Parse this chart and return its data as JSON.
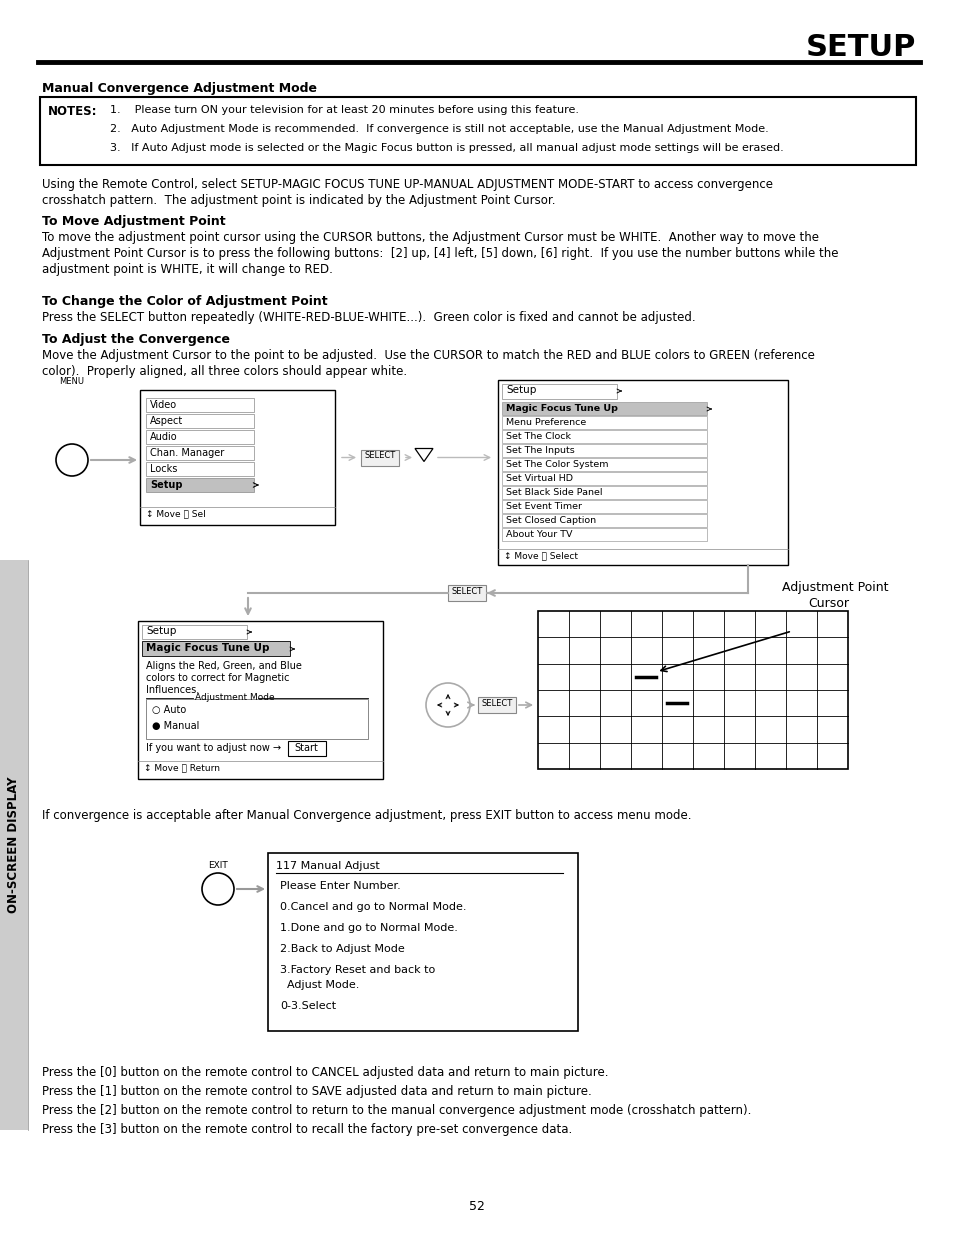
{
  "title": "SETUP",
  "section_title": "Manual Convergence Adjustment Mode",
  "notes_label": "NOTES:",
  "notes_lines": [
    "1.    Please turn ON your television for at least 20 minutes before using this feature.",
    "2.   Auto Adjustment Mode is recommended.  If convergence is still not acceptable, use the Manual Adjustment Mode.",
    "3.   If Auto Adjust mode is selected or the Magic Focus button is pressed, all manual adjust mode settings will be erased."
  ],
  "para1_line1": "Using the Remote Control, select SETUP-MAGIC FOCUS TUNE UP-MANUAL ADJUSTMENT MODE-START to access convergence",
  "para1_line2": "crosshatch pattern.  The adjustment point is indicated by the Adjustment Point Cursor.",
  "head2": "To Move Adjustment Point",
  "para2_line1": "To move the adjustment point cursor using the CURSOR buttons, the Adjustment Cursor must be WHITE.  Another way to move the",
  "para2_line2": "Adjustment Point Cursor is to press the following buttons:  [2] up, [4] left, [5] down, [6] right.  If you use the number buttons while the",
  "para2_line3": "adjustment point is WHITE, it will change to RED.",
  "head3": "To Change the Color of Adjustment Point",
  "para3": "Press the SELECT button repeatedly (WHITE-RED-BLUE-WHITE...).  Green color is fixed and cannot be adjusted.",
  "head4": "To Adjust the Convergence",
  "para4_line1": "Move the Adjustment Cursor to the point to be adjusted.  Use the CURSOR to match the RED and BLUE colors to GREEN (reference",
  "para4_line2": "color).  Properly aligned, all three colors should appear white.",
  "menu1_items": [
    "Video",
    "Aspect",
    "Audio",
    "Chan. Manager",
    "Locks",
    "Setup"
  ],
  "menu1_footer": "↕ Move Ⓜ Sel",
  "menu2_title": "Setup",
  "menu2_items": [
    "Magic Focus Tune Up",
    "Menu Preference",
    "Set The Clock",
    "Set The Inputs",
    "Set The Color System",
    "Set Virtual HD",
    "Set Black Side Panel",
    "Set Event Timer",
    "Set Closed Caption",
    "About Your TV"
  ],
  "menu2_footer": "↕ Move Ⓜ Select",
  "menu3_title": "Setup",
  "menu3_subtitle": "Magic Focus Tune Up",
  "menu3_desc_lines": [
    "Aligns the Red, Green, and Blue",
    "colors to correct for Magnetic",
    "Influences."
  ],
  "menu3_adj_label": "Adjustment Mode",
  "menu3_opts": [
    "○ Auto",
    "● Manual"
  ],
  "menu3_start": "If you want to adjust now →",
  "menu3_start_btn": "Start",
  "menu3_footer": "↕ Move Ⓜ Return",
  "adj_cursor_label1": "Adjustment Point",
  "adj_cursor_label2": "Cursor",
  "exit_text": "If convergence is acceptable after Manual Convergence adjustment, press EXIT button to access menu mode.",
  "box117_title": "117 Manual Adjust",
  "box117_lines": [
    "Please Enter Number.",
    "0.Cancel and go to Normal Mode.",
    "1.Done and go to Normal Mode.",
    "2.Back to Adjust Mode",
    "3.Factory Reset and back to",
    "  Adjust Mode.",
    "0-3.Select"
  ],
  "bottom_lines": [
    "Press the [0] button on the remote control to CANCEL adjusted data and return to main picture.",
    "Press the [1] button on the remote control to SAVE adjusted data and return to main picture.",
    "Press the [2] button on the remote control to return to the manual convergence adjustment mode (crosshatch pattern).",
    "Press the [3] button on the remote control to recall the factory pre-set convergence data."
  ],
  "page_number": "52",
  "sidebar_text": "ON-SCREEN DISPLAY",
  "menu_label": "MENU",
  "exit_label": "EXIT",
  "select_label": "SELECT"
}
